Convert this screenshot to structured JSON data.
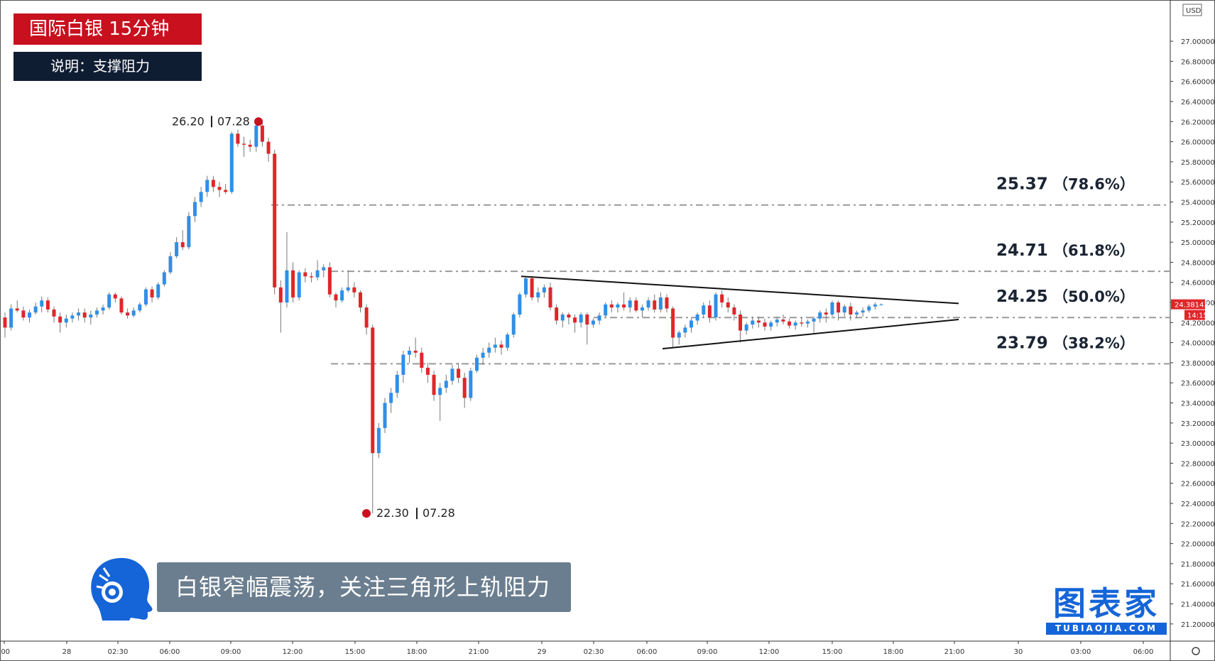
{
  "header": {
    "title": "国际白银  15分钟",
    "subtitle": "说明：支撑阻力"
  },
  "caption": "白银窄幅震荡，关注三角形上轨阻力",
  "brand": {
    "name": "图表家",
    "sub": "TUBIAOJIA.COM"
  },
  "chart_data": {
    "type": "candlestick",
    "currency": "USD",
    "price_label": "24.38143",
    "time_label": "14:15",
    "y_ticks": [
      "27.00000",
      "26.80000",
      "26.60000",
      "26.40000",
      "26.20000",
      "26.00000",
      "25.80000",
      "25.60000",
      "25.40000",
      "25.20000",
      "25.00000",
      "24.80000",
      "24.60000",
      "24.40000",
      "24.20000",
      "24.00000",
      "23.80000",
      "23.60000",
      "23.40000",
      "23.20000",
      "23.00000",
      "22.80000",
      "22.60000",
      "22.40000",
      "22.20000",
      "22.00000",
      "21.80000",
      "21.60000",
      "21.40000",
      "21.20000"
    ],
    "x_ticks": [
      ":00",
      "28",
      "02:30",
      "06:00",
      "09:00",
      "12:00",
      "15:00",
      "18:00",
      "21:00",
      "29",
      "02:30",
      "06:00",
      "09:00",
      "12:00",
      "15:00",
      "18:00",
      "21:00",
      "30",
      "03:00",
      "06:00"
    ],
    "levels": [
      {
        "price": 25.37,
        "value_label": "25.37",
        "pct_label": "（78.6%）"
      },
      {
        "price": 24.71,
        "value_label": "24.71",
        "pct_label": "（61.8%）"
      },
      {
        "price": 24.25,
        "value_label": "24.25",
        "pct_label": "（50.0%）"
      },
      {
        "price": 23.79,
        "value_label": "23.79",
        "pct_label": "（38.2%）"
      }
    ],
    "high_marker": {
      "price": "26.20",
      "date": "07.28"
    },
    "low_marker": {
      "price": "22.30",
      "date": "07.28"
    },
    "ylim": [
      21.1,
      27.15
    ],
    "colors": {
      "up": "#2f8fe8",
      "down": "#e0262a",
      "level": "#9a9a9a",
      "marker": "#c8101e"
    },
    "candles": [
      [
        24.25,
        24.3,
        24.05,
        24.15
      ],
      [
        24.15,
        24.38,
        24.12,
        24.34
      ],
      [
        24.34,
        24.42,
        24.3,
        24.32
      ],
      [
        24.32,
        24.36,
        24.22,
        24.25
      ],
      [
        24.25,
        24.33,
        24.2,
        24.3
      ],
      [
        24.3,
        24.4,
        24.28,
        24.36
      ],
      [
        24.36,
        24.46,
        24.3,
        24.42
      ],
      [
        24.42,
        24.45,
        24.3,
        24.33
      ],
      [
        24.33,
        24.36,
        24.2,
        24.26
      ],
      [
        24.26,
        24.3,
        24.1,
        24.2
      ],
      [
        24.2,
        24.28,
        24.15,
        24.24
      ],
      [
        24.24,
        24.3,
        24.2,
        24.27
      ],
      [
        24.27,
        24.34,
        24.22,
        24.3
      ],
      [
        24.3,
        24.34,
        24.2,
        24.25
      ],
      [
        24.25,
        24.32,
        24.18,
        24.28
      ],
      [
        24.28,
        24.35,
        24.25,
        24.32
      ],
      [
        24.32,
        24.38,
        24.28,
        24.35
      ],
      [
        24.35,
        24.5,
        24.33,
        24.48
      ],
      [
        24.48,
        24.5,
        24.4,
        24.44
      ],
      [
        24.44,
        24.46,
        24.28,
        24.3
      ],
      [
        24.3,
        24.34,
        24.24,
        24.27
      ],
      [
        24.27,
        24.35,
        24.25,
        24.32
      ],
      [
        24.32,
        24.4,
        24.3,
        24.38
      ],
      [
        24.38,
        24.55,
        24.36,
        24.53
      ],
      [
        24.53,
        24.56,
        24.4,
        24.45
      ],
      [
        24.45,
        24.6,
        24.43,
        24.58
      ],
      [
        24.58,
        24.72,
        24.56,
        24.7
      ],
      [
        24.7,
        24.9,
        24.68,
        24.86
      ],
      [
        24.86,
        25.05,
        24.84,
        25.0
      ],
      [
        25.0,
        25.12,
        24.92,
        24.95
      ],
      [
        24.95,
        25.3,
        24.93,
        25.26
      ],
      [
        25.26,
        25.45,
        25.2,
        25.4
      ],
      [
        25.4,
        25.55,
        25.35,
        25.5
      ],
      [
        25.5,
        25.66,
        25.45,
        25.62
      ],
      [
        25.62,
        25.66,
        25.5,
        25.55
      ],
      [
        25.55,
        25.6,
        25.45,
        25.52
      ],
      [
        25.52,
        25.58,
        25.48,
        25.5
      ],
      [
        25.5,
        26.1,
        25.48,
        26.08
      ],
      [
        26.08,
        26.12,
        25.95,
        25.98
      ],
      [
        25.98,
        26.05,
        25.85,
        25.97
      ],
      [
        25.97,
        26.02,
        25.9,
        25.95
      ],
      [
        25.95,
        26.18,
        25.9,
        26.16
      ],
      [
        26.16,
        26.2,
        25.95,
        26.0
      ],
      [
        26.0,
        26.04,
        25.8,
        25.88
      ],
      [
        25.88,
        25.92,
        24.48,
        24.55
      ],
      [
        24.55,
        24.62,
        24.1,
        24.4
      ],
      [
        24.4,
        25.1,
        24.35,
        24.72
      ],
      [
        24.72,
        24.8,
        24.4,
        24.45
      ],
      [
        24.45,
        24.72,
        24.42,
        24.7
      ],
      [
        24.7,
        24.74,
        24.6,
        24.66
      ],
      [
        24.66,
        24.7,
        24.6,
        24.65
      ],
      [
        24.65,
        24.82,
        24.62,
        24.72
      ],
      [
        24.72,
        24.78,
        24.65,
        24.75
      ],
      [
        24.75,
        24.8,
        24.45,
        24.48
      ],
      [
        24.48,
        24.5,
        24.35,
        24.42
      ],
      [
        24.42,
        24.55,
        24.4,
        24.52
      ],
      [
        24.52,
        24.72,
        24.5,
        24.55
      ],
      [
        24.55,
        24.6,
        24.45,
        24.5
      ],
      [
        24.5,
        24.52,
        24.3,
        24.35
      ],
      [
        24.35,
        24.38,
        24.08,
        24.15
      ],
      [
        24.15,
        24.18,
        22.3,
        22.9
      ],
      [
        22.9,
        23.2,
        22.85,
        23.15
      ],
      [
        23.15,
        23.45,
        23.1,
        23.4
      ],
      [
        23.4,
        23.55,
        23.3,
        23.5
      ],
      [
        23.5,
        23.72,
        23.45,
        23.68
      ],
      [
        23.68,
        23.92,
        23.6,
        23.88
      ],
      [
        23.88,
        23.96,
        23.8,
        23.92
      ],
      [
        23.92,
        24.05,
        23.85,
        23.9
      ],
      [
        23.9,
        23.95,
        23.7,
        23.75
      ],
      [
        23.75,
        23.8,
        23.6,
        23.68
      ],
      [
        23.68,
        23.72,
        23.42,
        23.48
      ],
      [
        23.48,
        23.6,
        23.22,
        23.55
      ],
      [
        23.55,
        23.68,
        23.5,
        23.62
      ],
      [
        23.62,
        23.78,
        23.58,
        23.74
      ],
      [
        23.74,
        23.8,
        23.6,
        23.65
      ],
      [
        23.65,
        23.7,
        23.35,
        23.45
      ],
      [
        23.45,
        23.75,
        23.42,
        23.72
      ],
      [
        23.72,
        23.88,
        23.7,
        23.85
      ],
      [
        23.85,
        23.95,
        23.78,
        23.9
      ],
      [
        23.9,
        24.0,
        23.85,
        23.95
      ],
      [
        23.95,
        24.05,
        23.9,
        23.98
      ],
      [
        23.98,
        24.02,
        23.88,
        23.95
      ],
      [
        23.95,
        24.1,
        23.92,
        24.08
      ],
      [
        24.08,
        24.3,
        24.05,
        24.28
      ],
      [
        24.28,
        24.5,
        24.25,
        24.48
      ],
      [
        24.48,
        24.66,
        24.45,
        24.64
      ],
      [
        24.64,
        24.66,
        24.42,
        24.45
      ],
      [
        24.45,
        24.55,
        24.4,
        24.5
      ],
      [
        24.5,
        24.58,
        24.45,
        24.55
      ],
      [
        24.55,
        24.6,
        24.32,
        24.35
      ],
      [
        24.35,
        24.38,
        24.18,
        24.22
      ],
      [
        24.22,
        24.3,
        24.15,
        24.28
      ],
      [
        24.28,
        24.3,
        24.18,
        24.25
      ],
      [
        24.25,
        24.28,
        24.1,
        24.2
      ],
      [
        24.2,
        24.3,
        24.15,
        24.28
      ],
      [
        24.28,
        24.3,
        23.98,
        24.18
      ],
      [
        24.18,
        24.24,
        24.15,
        24.22
      ],
      [
        24.22,
        24.3,
        24.18,
        24.27
      ],
      [
        24.27,
        24.4,
        24.25,
        24.38
      ],
      [
        24.38,
        24.42,
        24.3,
        24.35
      ],
      [
        24.35,
        24.4,
        24.3,
        24.38
      ],
      [
        24.38,
        24.5,
        24.32,
        24.35
      ],
      [
        24.35,
        24.45,
        24.3,
        24.42
      ],
      [
        24.42,
        24.45,
        24.3,
        24.32
      ],
      [
        24.32,
        24.38,
        24.25,
        24.35
      ],
      [
        24.35,
        24.45,
        24.32,
        24.42
      ],
      [
        24.42,
        24.48,
        24.3,
        24.33
      ],
      [
        24.33,
        24.5,
        24.3,
        24.45
      ],
      [
        24.45,
        24.48,
        24.3,
        24.34
      ],
      [
        24.34,
        24.36,
        23.95,
        24.05
      ],
      [
        24.05,
        24.12,
        23.98,
        24.1
      ],
      [
        24.1,
        24.18,
        24.05,
        24.15
      ],
      [
        24.15,
        24.25,
        24.1,
        24.22
      ],
      [
        24.22,
        24.3,
        24.18,
        24.28
      ],
      [
        24.28,
        24.4,
        24.25,
        24.37
      ],
      [
        24.37,
        24.42,
        24.2,
        24.25
      ],
      [
        24.25,
        24.5,
        24.22,
        24.48
      ],
      [
        24.48,
        24.52,
        24.35,
        24.4
      ],
      [
        24.4,
        24.45,
        24.3,
        24.35
      ],
      [
        24.35,
        24.38,
        24.22,
        24.28
      ],
      [
        24.28,
        24.32,
        24.0,
        24.12
      ],
      [
        24.12,
        24.2,
        24.08,
        24.18
      ],
      [
        24.18,
        24.26,
        24.14,
        24.22
      ],
      [
        24.22,
        24.26,
        24.15,
        24.2
      ],
      [
        24.2,
        24.24,
        24.12,
        24.16
      ],
      [
        24.16,
        24.22,
        24.12,
        24.2
      ],
      [
        24.2,
        24.26,
        24.16,
        24.23
      ],
      [
        24.23,
        24.28,
        24.18,
        24.21
      ],
      [
        24.21,
        24.24,
        24.14,
        24.17
      ],
      [
        24.17,
        24.22,
        24.13,
        24.2
      ],
      [
        24.2,
        24.25,
        24.16,
        24.19
      ],
      [
        24.19,
        24.23,
        24.15,
        24.21
      ],
      [
        24.21,
        24.26,
        24.1,
        24.24
      ],
      [
        24.24,
        24.32,
        24.2,
        24.3
      ],
      [
        24.3,
        24.34,
        24.2,
        24.28
      ],
      [
        24.28,
        24.42,
        24.24,
        24.4
      ],
      [
        24.4,
        24.42,
        24.22,
        24.3
      ],
      [
        24.3,
        24.38,
        24.26,
        24.36
      ],
      [
        24.36,
        24.4,
        24.22,
        24.28
      ],
      [
        24.28,
        24.32,
        24.24,
        24.3
      ],
      [
        24.3,
        24.35,
        24.26,
        24.32
      ],
      [
        24.32,
        24.38,
        24.3,
        24.36
      ],
      [
        24.36,
        24.4,
        24.33,
        24.38
      ],
      [
        24.38,
        24.39,
        24.37,
        24.38
      ]
    ]
  }
}
